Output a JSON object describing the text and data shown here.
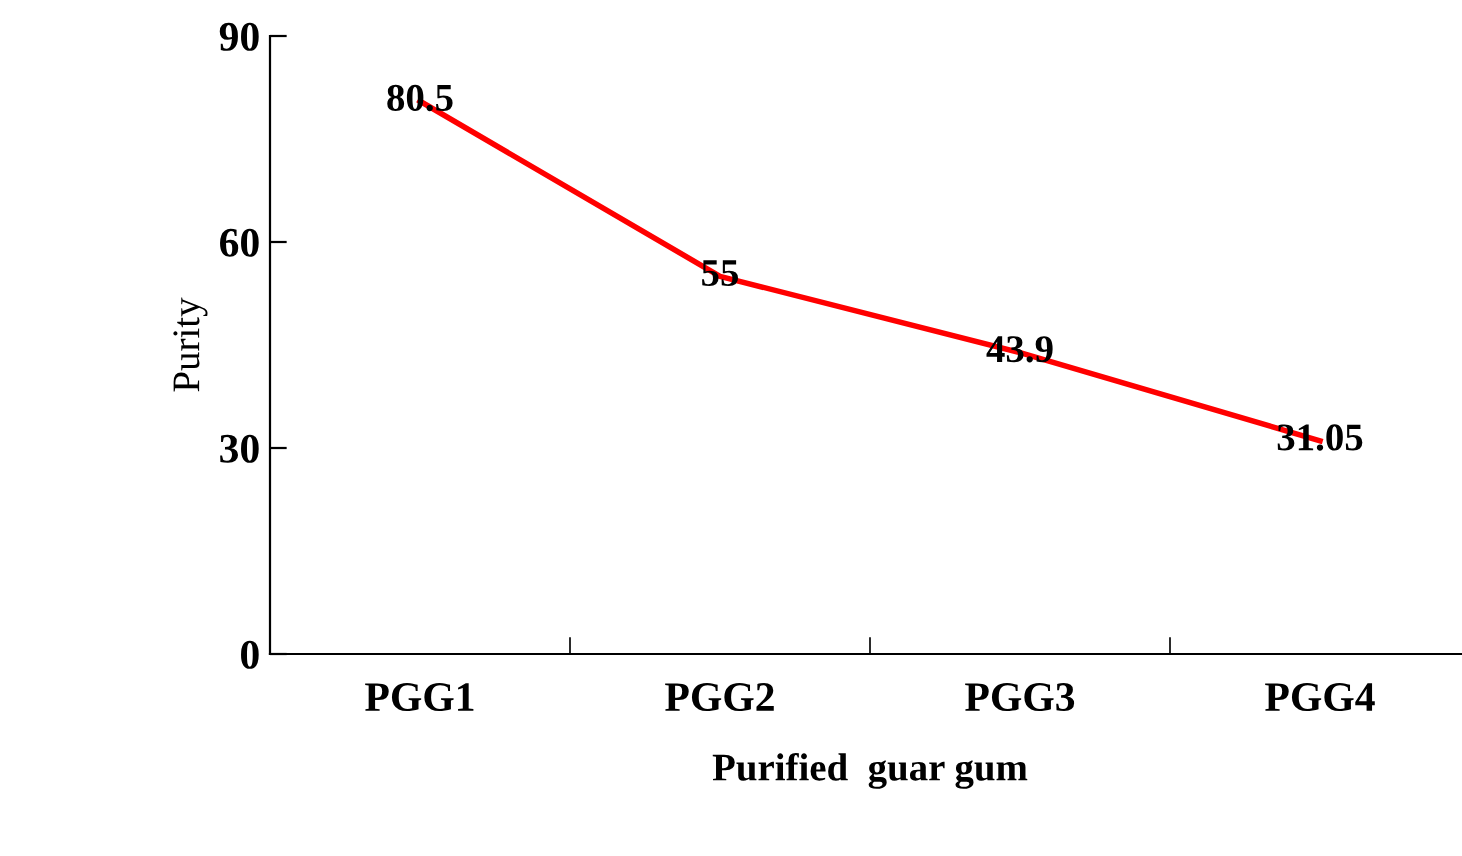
{
  "chart_data": {
    "type": "line",
    "xlabel": "Purified  guar gum",
    "ylabel": "Purity",
    "categories": [
      "PGG1",
      "PGG2",
      "PGG3",
      "PGG4"
    ],
    "series": [
      {
        "color": "#ff0000",
        "values": [
          80.5,
          55,
          43.9,
          31.05
        ]
      }
    ],
    "data_labels": true,
    "ylim": [
      0,
      90
    ],
    "yticks": [
      0,
      30,
      60,
      90
    ],
    "grid": false,
    "legend": false,
    "marker": "none",
    "line_style": "solid"
  }
}
